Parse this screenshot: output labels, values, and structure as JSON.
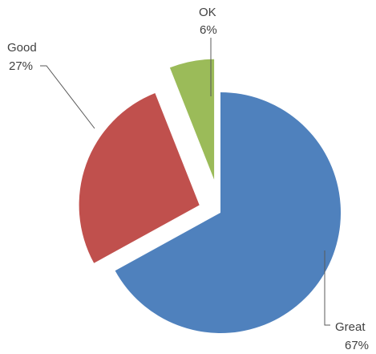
{
  "chart_data": {
    "type": "pie",
    "exploded": true,
    "legend": "none",
    "slices": [
      {
        "name": "Great",
        "value": 67,
        "label": "67%",
        "color": "#4f81bd"
      },
      {
        "name": "Good",
        "value": 27,
        "label": "27%",
        "color": "#c0504d"
      },
      {
        "name": "OK",
        "value": 6,
        "label": "6%",
        "color": "#9bbb59"
      }
    ]
  }
}
